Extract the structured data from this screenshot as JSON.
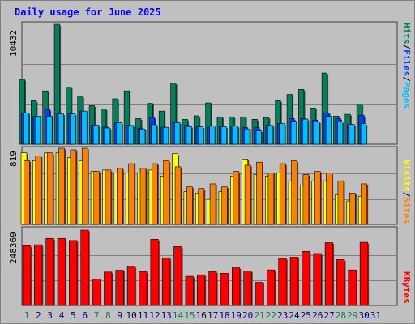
{
  "title": "Daily usage for June 2025",
  "colors": {
    "background": "#c0c0c0",
    "hits": "#00805c",
    "files": "#0040ff",
    "pages": "#00c0ff",
    "visits": "#ffff00",
    "sites": "#ff8000",
    "kbytes": "#ff0000",
    "weekend_day": "#00805c",
    "weekday": "#000080"
  },
  "chart_data": [
    {
      "type": "bar",
      "name": "usage-hits-files-pages",
      "ymax_label": "10432",
      "ylim": [
        0,
        10432
      ],
      "legend": [
        "Hits",
        "/",
        "Files",
        "/",
        "Pages"
      ],
      "categories": [
        "1",
        "2",
        "3",
        "4",
        "5",
        "6",
        "7",
        "8",
        "9",
        "10",
        "11",
        "12",
        "13",
        "14",
        "15",
        "16",
        "17",
        "18",
        "19",
        "20",
        "21",
        "22",
        "23",
        "24",
        "25",
        "26",
        "27",
        "28",
        "29",
        "30",
        "31"
      ],
      "series": [
        {
          "name": "Hits",
          "values": [
            5640,
            3780,
            4640,
            10432,
            4970,
            4170,
            3350,
            3070,
            3950,
            4640,
            2220,
            3550,
            2880,
            5300,
            2160,
            2470,
            3590,
            2380,
            2380,
            2380,
            2160,
            2330,
            3780,
            4330,
            4770,
            3150,
            6200,
            2440,
            2600,
            3500,
            null
          ]
        },
        {
          "name": "Files",
          "values": [
            2730,
            2440,
            3030,
            2630,
            2630,
            2880,
            1660,
            1480,
            1880,
            1630,
            1400,
            2330,
            1470,
            1880,
            1630,
            1520,
            1570,
            1520,
            1570,
            1430,
            1450,
            1630,
            1800,
            2230,
            2230,
            2100,
            2730,
            2230,
            1720,
            2520,
            null
          ]
        },
        {
          "name": "Pages",
          "values": [
            2730,
            2440,
            2440,
            2630,
            2630,
            2880,
            1660,
            1410,
            1880,
            1630,
            1320,
            1700,
            1470,
            1880,
            1540,
            1520,
            1570,
            1520,
            1570,
            1330,
            1160,
            1630,
            1800,
            2000,
            2180,
            1940,
            2420,
            1940,
            1720,
            1790,
            null
          ]
        }
      ]
    },
    {
      "type": "bar",
      "name": "usage-sites-visits",
      "ymax_label": "819",
      "ylim": [
        0,
        819
      ],
      "legend": [
        "Visits",
        "/",
        "Sites"
      ],
      "categories": [
        "1",
        "2",
        "3",
        "4",
        "5",
        "6",
        "7",
        "8",
        "9",
        "10",
        "11",
        "12",
        "13",
        "14",
        "15",
        "16",
        "17",
        "18",
        "19",
        "20",
        "21",
        "22",
        "23",
        "24",
        "25",
        "26",
        "27",
        "28",
        "29",
        "30",
        "31"
      ],
      "series": [
        {
          "name": "Visits",
          "values": [
            769,
            686,
            769,
            769,
            719,
            686,
            569,
            585,
            553,
            553,
            553,
            585,
            519,
            760,
            352,
            336,
            269,
            352,
            519,
            703,
            536,
            519,
            553,
            469,
            425,
            469,
            469,
            319,
            252,
            303,
            null
          ]
        },
        {
          "name": "Sites",
          "values": [
            686,
            736,
            769,
            819,
            802,
            819,
            569,
            585,
            603,
            653,
            603,
            653,
            686,
            619,
            403,
            386,
            436,
            403,
            569,
            636,
            669,
            553,
            653,
            686,
            536,
            569,
            553,
            469,
            336,
            436,
            null
          ]
        }
      ]
    },
    {
      "type": "bar",
      "name": "usage-kbytes",
      "ymax_label": "248369",
      "ylim": [
        0,
        248369
      ],
      "legend": [
        "KBytes"
      ],
      "categories": [
        "1",
        "2",
        "3",
        "4",
        "5",
        "6",
        "7",
        "8",
        "9",
        "10",
        "11",
        "12",
        "13",
        "14",
        "15",
        "16",
        "17",
        "18",
        "19",
        "20",
        "21",
        "22",
        "23",
        "24",
        "25",
        "26",
        "27",
        "28",
        "29",
        "30",
        "31"
      ],
      "series": [
        {
          "name": "KBytes",
          "values": [
            197000,
            200000,
            221000,
            221000,
            214000,
            248369,
            87000,
            110000,
            116000,
            129000,
            111000,
            218000,
            157000,
            194000,
            96000,
            101000,
            111000,
            106000,
            124000,
            114000,
            76000,
            117000,
            155000,
            159000,
            178000,
            171000,
            207000,
            151000,
            117000,
            208000,
            null
          ]
        }
      ]
    }
  ],
  "weekend_days": [
    1,
    7,
    8,
    14,
    15,
    21,
    22,
    28,
    29
  ]
}
